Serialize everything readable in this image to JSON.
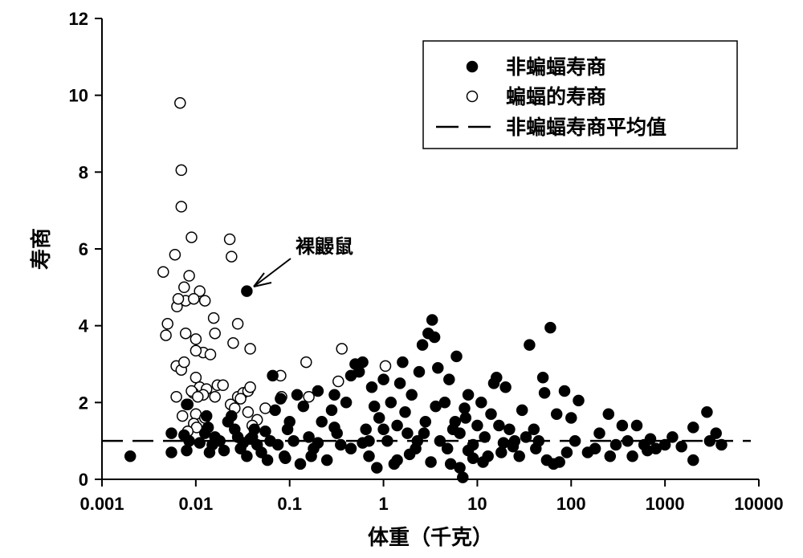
{
  "chart_data": {
    "type": "scatter",
    "xlabel": "体重（千克）",
    "ylabel": "寿商",
    "x_scale": "log",
    "xlim": [
      0.001,
      10000
    ],
    "ylim": [
      0,
      12
    ],
    "x_ticks": [
      "0.001",
      "0.01",
      "0.1",
      "1",
      "10",
      "100",
      "1000",
      "10000"
    ],
    "y_ticks": [
      "0",
      "2",
      "4",
      "6",
      "8",
      "10",
      "12"
    ],
    "grid": false,
    "legend_position": "top-right",
    "legend": {
      "nonbat_label": "非蝙蝠寿商",
      "bat_label": "蝙蝠的寿商",
      "mean_label": "非蝙蝠寿商平均值"
    },
    "annotation": {
      "text": "裸鼹鼠",
      "x": 0.035,
      "y": 4.9
    },
    "mean_line": {
      "y": 1.0
    },
    "series": [
      {
        "name": "蝙蝠的寿商",
        "marker": "open-circle",
        "points": [
          [
            0.0068,
            9.8
          ],
          [
            0.007,
            8.05
          ],
          [
            0.007,
            7.1
          ],
          [
            0.009,
            6.3
          ],
          [
            0.0045,
            5.4
          ],
          [
            0.006,
            5.85
          ],
          [
            0.0085,
            5.3
          ],
          [
            0.0075,
            5.0
          ],
          [
            0.011,
            4.9
          ],
          [
            0.0063,
            4.5
          ],
          [
            0.0078,
            4.65
          ],
          [
            0.0095,
            4.7
          ],
          [
            0.0125,
            4.65
          ],
          [
            0.0065,
            4.7
          ],
          [
            0.005,
            4.05
          ],
          [
            0.0048,
            3.75
          ],
          [
            0.0078,
            3.8
          ],
          [
            0.01,
            3.65
          ],
          [
            0.016,
            3.8
          ],
          [
            0.012,
            3.3
          ],
          [
            0.0143,
            3.25
          ],
          [
            0.01,
            3.35
          ],
          [
            0.0062,
            2.95
          ],
          [
            0.007,
            2.85
          ],
          [
            0.0075,
            3.05
          ],
          [
            0.0155,
            4.2
          ],
          [
            0.023,
            6.25
          ],
          [
            0.024,
            5.8
          ],
          [
            0.028,
            4.05
          ],
          [
            0.025,
            3.55
          ],
          [
            0.038,
            3.4
          ],
          [
            0.01,
            2.65
          ],
          [
            0.011,
            2.4
          ],
          [
            0.013,
            2.35
          ],
          [
            0.016,
            2.15
          ],
          [
            0.017,
            2.45
          ],
          [
            0.0195,
            2.45
          ],
          [
            0.0094,
            2.25
          ],
          [
            0.012,
            2.2
          ],
          [
            0.009,
            2.3
          ],
          [
            0.0062,
            2.15
          ],
          [
            0.0082,
            1.95
          ],
          [
            0.0105,
            2.15
          ],
          [
            0.0235,
            1.95
          ],
          [
            0.028,
            2.15
          ],
          [
            0.032,
            2.25
          ],
          [
            0.036,
            2.3
          ],
          [
            0.038,
            2.4
          ],
          [
            0.03,
            2.1
          ],
          [
            0.026,
            1.85
          ],
          [
            0.036,
            1.75
          ],
          [
            0.045,
            1.55
          ],
          [
            0.055,
            1.85
          ],
          [
            0.04,
            1.4
          ],
          [
            0.01,
            1.7
          ],
          [
            0.0125,
            1.6
          ],
          [
            0.0072,
            1.65
          ],
          [
            0.0095,
            1.45
          ],
          [
            0.0102,
            1.35
          ],
          [
            0.0082,
            1.25
          ],
          [
            0.08,
            2.7
          ],
          [
            0.082,
            2.15
          ],
          [
            0.15,
            3.05
          ],
          [
            0.16,
            2.15
          ],
          [
            0.33,
            2.55
          ],
          [
            0.36,
            3.4
          ],
          [
            1.05,
            2.95
          ]
        ]
      },
      {
        "name": "非蝙蝠寿商",
        "marker": "filled-circle",
        "points": [
          [
            0.002,
            0.6
          ],
          [
            0.0055,
            1.2
          ],
          [
            0.0055,
            0.7
          ],
          [
            0.008,
            1.95
          ],
          [
            0.0085,
            1.0
          ],
          [
            0.008,
            0.75
          ],
          [
            0.0075,
            1.15
          ],
          [
            0.011,
            0.95
          ],
          [
            0.0125,
            1.2
          ],
          [
            0.0135,
            1.35
          ],
          [
            0.015,
            0.9
          ],
          [
            0.016,
            1.1
          ],
          [
            0.018,
            1.0
          ],
          [
            0.02,
            0.75
          ],
          [
            0.014,
            0.7
          ],
          [
            0.013,
            1.65
          ],
          [
            0.022,
            1.5
          ],
          [
            0.024,
            1.65
          ],
          [
            0.026,
            1.3
          ],
          [
            0.028,
            1.1
          ],
          [
            0.03,
            0.8
          ],
          [
            0.032,
            0.95
          ],
          [
            0.035,
            0.6
          ],
          [
            0.038,
            1.05
          ],
          [
            0.042,
            1.3
          ],
          [
            0.045,
            0.9
          ],
          [
            0.05,
            0.7
          ],
          [
            0.055,
            1.25
          ],
          [
            0.058,
            0.5
          ],
          [
            0.062,
            1.0
          ],
          [
            0.066,
            2.7
          ],
          [
            0.07,
            1.8
          ],
          [
            0.075,
            0.9
          ],
          [
            0.08,
            2.1
          ],
          [
            0.088,
            0.6
          ],
          [
            0.095,
            1.3
          ],
          [
            0.1,
            1.5
          ],
          [
            0.11,
            1.0
          ],
          [
            0.12,
            2.2
          ],
          [
            0.13,
            0.4
          ],
          [
            0.14,
            1.9
          ],
          [
            0.16,
            1.1
          ],
          [
            0.18,
            0.8
          ],
          [
            0.2,
            2.3
          ],
          [
            0.22,
            1.5
          ],
          [
            0.25,
            0.5
          ],
          [
            0.28,
            1.8
          ],
          [
            0.3,
            2.2
          ],
          [
            0.32,
            1.2
          ],
          [
            0.35,
            0.9
          ],
          [
            0.4,
            2.0
          ],
          [
            0.45,
            2.7
          ],
          [
            0.5,
            3.0
          ],
          [
            0.55,
            2.8
          ],
          [
            0.6,
            3.05
          ],
          [
            0.65,
            1.3
          ],
          [
            0.7,
            0.6
          ],
          [
            0.75,
            2.4
          ],
          [
            0.8,
            1.9
          ],
          [
            0.85,
            0.3
          ],
          [
            0.9,
            1.6
          ],
          [
            1.0,
            2.6
          ],
          [
            1.1,
            1.0
          ],
          [
            1.2,
            2.0
          ],
          [
            1.3,
            0.4
          ],
          [
            1.4,
            1.4
          ],
          [
            1.5,
            2.5
          ],
          [
            1.6,
            3.05
          ],
          [
            1.8,
            1.2
          ],
          [
            2.0,
            2.2
          ],
          [
            2.2,
            0.8
          ],
          [
            2.4,
            2.8
          ],
          [
            2.6,
            3.5
          ],
          [
            2.8,
            1.5
          ],
          [
            3.0,
            3.8
          ],
          [
            3.3,
            4.15
          ],
          [
            3.5,
            3.7
          ],
          [
            3.8,
            2.9
          ],
          [
            4.0,
            1.0
          ],
          [
            4.5,
            2.0
          ],
          [
            5.0,
            2.6
          ],
          [
            5.5,
            1.3
          ],
          [
            6.0,
            3.2
          ],
          [
            6.5,
            0.3
          ],
          [
            7.0,
            0.05
          ],
          [
            7.5,
            1.6
          ],
          [
            8.0,
            2.2
          ],
          [
            9.0,
            0.9
          ],
          [
            10.0,
            1.4
          ],
          [
            11.0,
            2.0
          ],
          [
            12.0,
            1.1
          ],
          [
            14.0,
            1.7
          ],
          [
            15.0,
            2.5
          ],
          [
            16.0,
            2.65
          ],
          [
            18.0,
            0.7
          ],
          [
            20.0,
            2.4
          ],
          [
            22.0,
            1.3
          ],
          [
            25.0,
            1.0
          ],
          [
            30.0,
            1.8
          ],
          [
            36.0,
            3.5
          ],
          [
            40.0,
            1.3
          ],
          [
            45.0,
            1.0
          ],
          [
            50.0,
            2.65
          ],
          [
            52.0,
            2.25
          ],
          [
            55.0,
            0.5
          ],
          [
            60.0,
            3.95
          ],
          [
            65.0,
            0.4
          ],
          [
            70.0,
            1.7
          ],
          [
            75.0,
            0.45
          ],
          [
            85.0,
            2.3
          ],
          [
            100.0,
            1.6
          ],
          [
            110.0,
            1.0
          ],
          [
            120.0,
            2.05
          ],
          [
            150.0,
            0.7
          ],
          [
            200.0,
            1.2
          ],
          [
            250.0,
            1.7
          ],
          [
            300.0,
            0.9
          ],
          [
            350.0,
            1.4
          ],
          [
            400.0,
            1.0
          ],
          [
            500.0,
            1.4
          ],
          [
            600.0,
            0.9
          ],
          [
            700.0,
            1.05
          ],
          [
            800.0,
            0.8
          ],
          [
            1000.0,
            0.9
          ],
          [
            1200.0,
            1.1
          ],
          [
            1500.0,
            0.85
          ],
          [
            2000.0,
            1.35
          ],
          [
            2000.0,
            0.5
          ],
          [
            2800.0,
            1.75
          ],
          [
            3000.0,
            1.0
          ],
          [
            3500.0,
            1.2
          ],
          [
            4000.0,
            0.9
          ],
          [
            0.3,
            1.35
          ],
          [
            0.6,
            0.95
          ],
          [
            1.4,
            0.5
          ],
          [
            2.3,
            1.0
          ],
          [
            3.2,
            0.45
          ],
          [
            4.8,
            0.8
          ],
          [
            6.5,
            1.2
          ],
          [
            9.0,
            0.55
          ],
          [
            13.0,
            0.6
          ],
          [
            17.0,
            1.4
          ],
          [
            24.0,
            0.85
          ],
          [
            33.0,
            1.1
          ],
          [
            0.04,
            1.1
          ],
          [
            0.09,
            0.55
          ],
          [
            0.17,
            0.6
          ],
          [
            0.7,
            1.0
          ],
          [
            1.9,
            0.65
          ],
          [
            2.7,
            1.2
          ],
          [
            5.2,
            0.4
          ],
          [
            8.0,
            0.75
          ],
          [
            11.5,
            0.45
          ],
          [
            19.0,
            0.95
          ],
          [
            28.0,
            0.6
          ],
          [
            42.0,
            0.8
          ],
          [
            90.0,
            0.7
          ],
          [
            180.0,
            0.8
          ],
          [
            260.0,
            0.6
          ],
          [
            450.0,
            0.6
          ],
          [
            650.0,
            0.75
          ],
          [
            0.2,
            0.95
          ],
          [
            0.45,
            0.8
          ],
          [
            1.0,
            1.3
          ],
          [
            1.7,
            1.75
          ],
          [
            3.6,
            1.9
          ],
          [
            5.8,
            1.5
          ],
          [
            7.3,
            1.85
          ]
        ]
      }
    ]
  }
}
